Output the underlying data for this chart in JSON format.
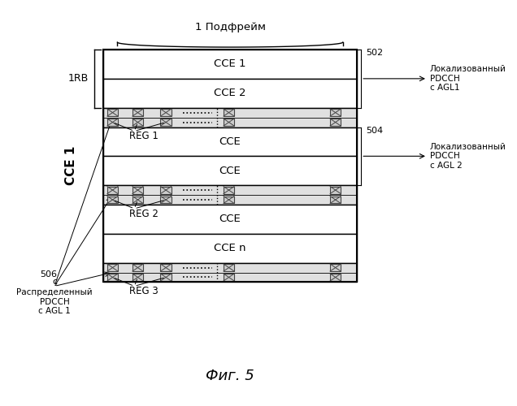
{
  "fig_width": 6.36,
  "fig_height": 5.0,
  "dpi": 100,
  "bg_color": "#ffffff",
  "title": "Фиг. 5",
  "top_label": "1 Подфрейм",
  "left_rb_label": "1RB",
  "left_cce_label": "CCE 1",
  "ref_502": "502",
  "ref_504": "504",
  "ref_506": "506",
  "label_502": "Локализованный\nPDCCH\nс AGL1",
  "label_504": "Локализованный\nPDCCH\nс AGL 2",
  "label_506": "Распределенный\nPDCCH\nс AGL 1",
  "rows": [
    {
      "label": "CCE 1",
      "type": "cce"
    },
    {
      "label": "CCE 2",
      "type": "cce"
    },
    {
      "label": "REG 1",
      "type": "reg"
    },
    {
      "label": "CCE",
      "type": "cce"
    },
    {
      "label": "CCE",
      "type": "cce"
    },
    {
      "label": "REG 2",
      "type": "reg"
    },
    {
      "label": "CCE",
      "type": "cce"
    },
    {
      "label": "CCE n",
      "type": "cce"
    },
    {
      "label": "REG 3",
      "type": "reg"
    }
  ]
}
